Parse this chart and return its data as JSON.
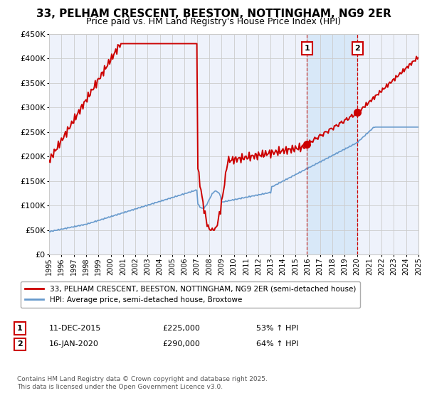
{
  "title": "33, PELHAM CRESCENT, BEESTON, NOTTINGHAM, NG9 2ER",
  "subtitle": "Price paid vs. HM Land Registry's House Price Index (HPI)",
  "xmin": 1995,
  "xmax": 2025,
  "ymin": 0,
  "ymax": 450000,
  "yticks": [
    0,
    50000,
    100000,
    150000,
    200000,
    250000,
    300000,
    350000,
    400000,
    450000
  ],
  "xlabel_years": [
    1995,
    1996,
    1997,
    1998,
    1999,
    2000,
    2001,
    2002,
    2003,
    2004,
    2005,
    2006,
    2007,
    2008,
    2009,
    2010,
    2011,
    2012,
    2013,
    2014,
    2015,
    2016,
    2017,
    2018,
    2019,
    2020,
    2021,
    2022,
    2023,
    2024,
    2025
  ],
  "legend_label_red": "33, PELHAM CRESCENT, BEESTON, NOTTINGHAM, NG9 2ER (semi-detached house)",
  "legend_label_blue": "HPI: Average price, semi-detached house, Broxtowe",
  "marker1_x": 2015.95,
  "marker1_y": 225000,
  "marker2_x": 2020.05,
  "marker2_y": 290000,
  "label1_text": "1",
  "label2_text": "2",
  "note1_date": "11-DEC-2015",
  "note1_price": "£225,000",
  "note1_pct": "53% ↑ HPI",
  "note2_date": "16-JAN-2020",
  "note2_price": "£290,000",
  "note2_pct": "64% ↑ HPI",
  "footer": "Contains HM Land Registry data © Crown copyright and database right 2025.\nThis data is licensed under the Open Government Licence v3.0.",
  "red_color": "#cc0000",
  "blue_color": "#6699cc",
  "bg_color": "#eef2fb",
  "grid_color": "#cccccc",
  "shade_color": "#d8e8f8",
  "title_fontsize": 11,
  "subtitle_fontsize": 9,
  "shade_start": 2015.95,
  "shade_end": 2020.05
}
